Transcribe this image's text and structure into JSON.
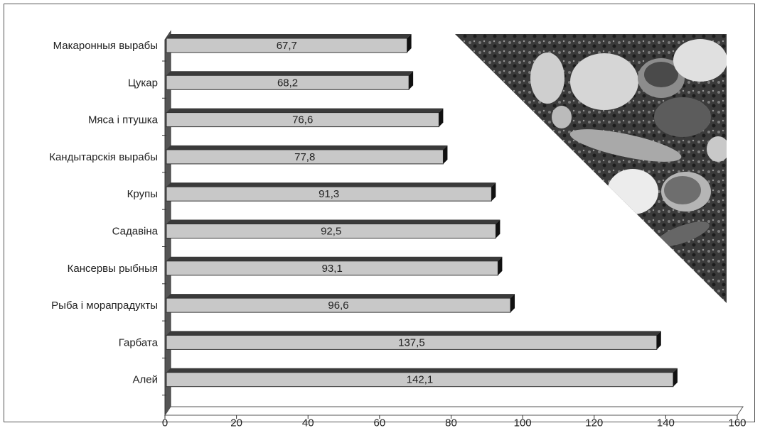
{
  "chart_data": {
    "type": "bar",
    "orientation": "horizontal",
    "categories": [
      "Макаронныя вырабы",
      "Цукар",
      "Мяса і птушка",
      "Кандытарскія вырабы",
      "Крупы",
      "Садавіна",
      "Кансервы рыбныя",
      "Рыба і морапрадукты",
      "Гарбата",
      "Алей"
    ],
    "values": [
      67.7,
      68.2,
      76.6,
      77.8,
      91.3,
      92.5,
      93.1,
      96.6,
      137.5,
      142.1
    ],
    "value_labels": [
      "67,7",
      "68,2",
      "76,6",
      "77,8",
      "91,3",
      "92,5",
      "93,1",
      "96,6",
      "137,5",
      "142,1"
    ],
    "xlim": [
      0,
      160
    ],
    "x_ticks": [
      0,
      20,
      40,
      60,
      80,
      100,
      120,
      140,
      160
    ],
    "grid": false,
    "legend": "none",
    "title": "",
    "xlabel": "",
    "ylabel": "",
    "colors": {
      "bar_face": "#c8c8c8",
      "bar_top": "#3a3a3a",
      "bar_end": "#111111",
      "axis_wall": "#555555",
      "image_dark": "#2e2e2e",
      "image_light": "#bdbdbd"
    },
    "decoration": "food-photo-triangle"
  }
}
